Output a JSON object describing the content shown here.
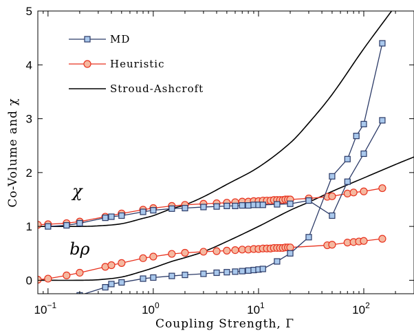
{
  "chart_data": {
    "type": "line",
    "xlabel": "Coupling Strength, Γ",
    "ylabel": "Co-Volume and χ",
    "xscale": "log",
    "xlim": [
      0.08,
      300
    ],
    "ylim": [
      -0.25,
      5
    ],
    "x_ticks": [
      {
        "value": 0.1,
        "base": "10",
        "exp": "−1"
      },
      {
        "value": 1,
        "base": "10",
        "exp": "0"
      },
      {
        "value": 10,
        "base": "10",
        "exp": "1"
      },
      {
        "value": 100,
        "base": "10",
        "exp": "2"
      }
    ],
    "y_ticks": [
      0,
      1,
      2,
      3,
      4,
      5
    ],
    "legend": {
      "position": "top-left",
      "entries": [
        {
          "label": "MD",
          "series": "md"
        },
        {
          "label": "Heuristic",
          "series": "heuristic"
        },
        {
          "label": "Stroud-Ashcroft",
          "series": "sa"
        }
      ]
    },
    "annotations": [
      {
        "text": "χ",
        "x": 0.17,
        "y": 1.55
      },
      {
        "text": "bρ",
        "x": 0.16,
        "y": 0.48
      }
    ],
    "series": [
      {
        "id": "md",
        "name": "MD",
        "marker": "square",
        "color": "#2b3a67",
        "fill": "#a9c8ec",
        "curves": [
          {
            "label": "χ",
            "points": [
              [
                0.1,
                1.0
              ],
              [
                0.15,
                1.02
              ],
              [
                0.2,
                1.06
              ],
              [
                0.35,
                1.16
              ],
              [
                0.4,
                1.18
              ],
              [
                0.5,
                1.2
              ],
              [
                0.8,
                1.27
              ],
              [
                1.0,
                1.3
              ],
              [
                1.5,
                1.33
              ],
              [
                2.0,
                1.34
              ],
              [
                3.0,
                1.36
              ],
              [
                4.0,
                1.37
              ],
              [
                5.0,
                1.38
              ],
              [
                6.0,
                1.38
              ],
              [
                7.0,
                1.39
              ],
              [
                8.0,
                1.39
              ],
              [
                9.0,
                1.4
              ],
              [
                10,
                1.4
              ],
              [
                11,
                1.4
              ],
              [
                15,
                1.41
              ],
              [
                20,
                1.42
              ],
              [
                30,
                1.48
              ],
              [
                50,
                1.2
              ],
              [
                70,
                1.83
              ],
              [
                100,
                2.35
              ],
              [
                150,
                2.97
              ]
            ]
          },
          {
            "label": "bρ",
            "points": [
              [
                0.2,
                -0.28
              ],
              [
                0.35,
                -0.13
              ],
              [
                0.4,
                -0.07
              ],
              [
                0.5,
                -0.04
              ],
              [
                0.8,
                0.03
              ],
              [
                1.0,
                0.05
              ],
              [
                1.5,
                0.08
              ],
              [
                2.0,
                0.1
              ],
              [
                3.0,
                0.12
              ],
              [
                4.0,
                0.14
              ],
              [
                5.0,
                0.15
              ],
              [
                6.0,
                0.16
              ],
              [
                7.0,
                0.17
              ],
              [
                8.0,
                0.18
              ],
              [
                9.0,
                0.19
              ],
              [
                10,
                0.2
              ],
              [
                11,
                0.21
              ],
              [
                15,
                0.35
              ],
              [
                20,
                0.5
              ],
              [
                30,
                0.8
              ],
              [
                50,
                1.93
              ],
              [
                70,
                2.25
              ],
              [
                85,
                2.68
              ],
              [
                100,
                2.9
              ],
              [
                150,
                4.4
              ]
            ]
          }
        ]
      },
      {
        "id": "heuristic",
        "name": "Heuristic",
        "marker": "circle",
        "color": "#e8321e",
        "fill": "#f5b8a0",
        "curves": [
          {
            "label": "χ",
            "points": [
              [
                0.08,
                1.03
              ],
              [
                0.1,
                1.04
              ],
              [
                0.15,
                1.06
              ],
              [
                0.2,
                1.09
              ],
              [
                0.35,
                1.18
              ],
              [
                0.5,
                1.24
              ],
              [
                0.8,
                1.31
              ],
              [
                1.0,
                1.34
              ],
              [
                1.5,
                1.38
              ],
              [
                2.0,
                1.4
              ],
              [
                3.0,
                1.42
              ],
              [
                4.0,
                1.43
              ],
              [
                5.0,
                1.44
              ],
              [
                6.0,
                1.45
              ],
              [
                7.0,
                1.46
              ],
              [
                8.0,
                1.46
              ],
              [
                9.0,
                1.47
              ],
              [
                10,
                1.47
              ],
              [
                11,
                1.48
              ],
              [
                12,
                1.48
              ],
              [
                13,
                1.48
              ],
              [
                14,
                1.49
              ],
              [
                15,
                1.49
              ],
              [
                16,
                1.49
              ],
              [
                17,
                1.49
              ],
              [
                18,
                1.5
              ],
              [
                19,
                1.5
              ],
              [
                20,
                1.5
              ],
              [
                30,
                1.52
              ],
              [
                45,
                1.55
              ],
              [
                50,
                1.56
              ],
              [
                70,
                1.61
              ],
              [
                80,
                1.63
              ],
              [
                100,
                1.65
              ],
              [
                150,
                1.71
              ]
            ]
          },
          {
            "label": "bρ",
            "points": [
              [
                0.08,
                0.01
              ],
              [
                0.1,
                0.03
              ],
              [
                0.15,
                0.09
              ],
              [
                0.2,
                0.14
              ],
              [
                0.35,
                0.25
              ],
              [
                0.4,
                0.28
              ],
              [
                0.5,
                0.32
              ],
              [
                0.8,
                0.41
              ],
              [
                1.0,
                0.44
              ],
              [
                1.5,
                0.49
              ],
              [
                2.0,
                0.51
              ],
              [
                3.0,
                0.53
              ],
              [
                4.0,
                0.54
              ],
              [
                5.0,
                0.55
              ],
              [
                6.0,
                0.56
              ],
              [
                7.0,
                0.57
              ],
              [
                8.0,
                0.57
              ],
              [
                9.0,
                0.58
              ],
              [
                10,
                0.58
              ],
              [
                11,
                0.59
              ],
              [
                12,
                0.59
              ],
              [
                13,
                0.59
              ],
              [
                14,
                0.6
              ],
              [
                15,
                0.6
              ],
              [
                16,
                0.6
              ],
              [
                17,
                0.6
              ],
              [
                18,
                0.61
              ],
              [
                19,
                0.61
              ],
              [
                20,
                0.61
              ],
              [
                45,
                0.65
              ],
              [
                50,
                0.66
              ],
              [
                70,
                0.7
              ],
              [
                80,
                0.71
              ],
              [
                90,
                0.72
              ],
              [
                100,
                0.73
              ],
              [
                150,
                0.77
              ]
            ]
          }
        ]
      },
      {
        "id": "sa",
        "name": "Stroud-Ashcroft",
        "marker": "none",
        "color": "#000000",
        "curves": [
          {
            "label": "χ",
            "points": [
              [
                0.08,
                1.0
              ],
              [
                0.2,
                1.0
              ],
              [
                0.3,
                1.01
              ],
              [
                0.5,
                1.05
              ],
              [
                0.8,
                1.15
              ],
              [
                1.0,
                1.2
              ],
              [
                1.5,
                1.33
              ],
              [
                2.0,
                1.4
              ],
              [
                3.0,
                1.55
              ],
              [
                5.0,
                1.78
              ],
              [
                10,
                2.1
              ],
              [
                20,
                2.55
              ],
              [
                30,
                2.92
              ],
              [
                50,
                3.45
              ],
              [
                100,
                4.3
              ],
              [
                200,
                5.1
              ],
              [
                300,
                5.6
              ]
            ]
          },
          {
            "label": "bρ",
            "points": [
              [
                0.08,
                0.0
              ],
              [
                0.2,
                0.0
              ],
              [
                0.3,
                0.01
              ],
              [
                0.5,
                0.06
              ],
              [
                0.8,
                0.17
              ],
              [
                1.0,
                0.23
              ],
              [
                1.5,
                0.35
              ],
              [
                2.0,
                0.42
              ],
              [
                3.0,
                0.53
              ],
              [
                5.0,
                0.72
              ],
              [
                10,
                1.0
              ],
              [
                20,
                1.3
              ],
              [
                30,
                1.45
              ],
              [
                50,
                1.65
              ],
              [
                100,
                1.9
              ],
              [
                200,
                2.15
              ],
              [
                300,
                2.29
              ]
            ]
          }
        ]
      }
    ]
  }
}
